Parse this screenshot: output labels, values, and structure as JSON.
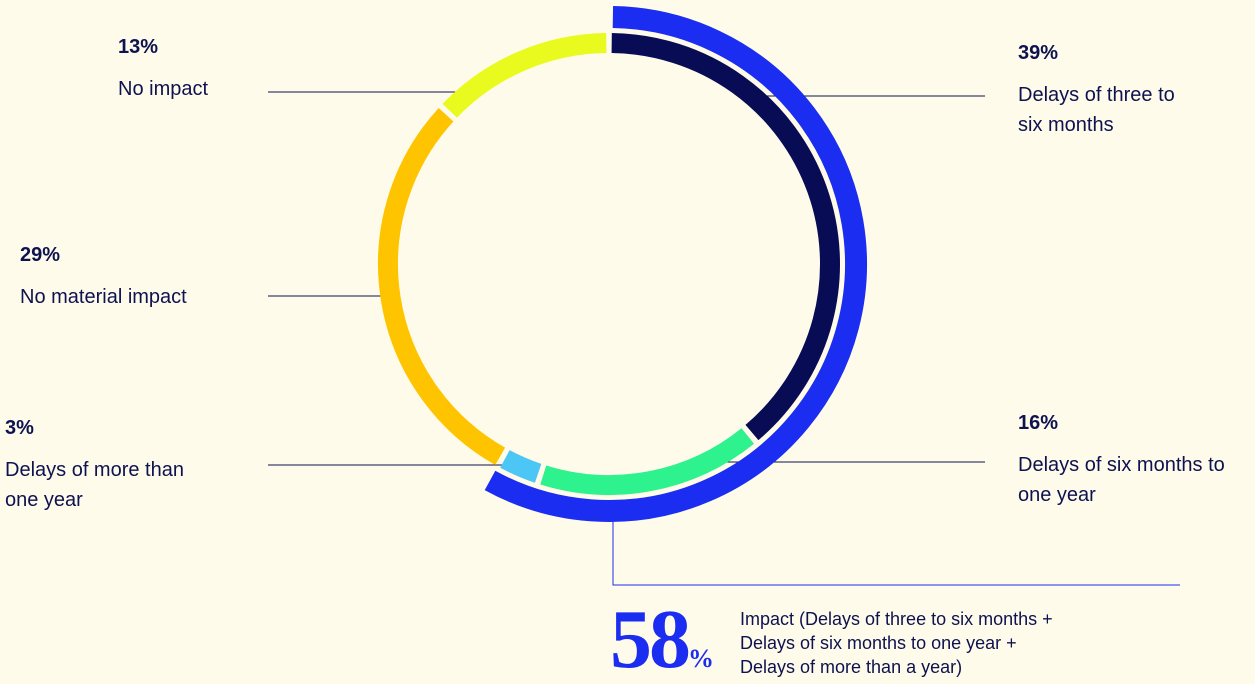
{
  "chart_data": {
    "type": "pie",
    "donut": true,
    "categories": [
      "Delays of three to six months",
      "Delays of six months to one year",
      "Delays of more than one year",
      "No material impact",
      "No impact"
    ],
    "values": [
      39,
      16,
      3,
      29,
      13
    ],
    "value_labels": [
      "39%",
      "16%",
      "3%",
      "29%",
      "13%"
    ],
    "colors": [
      "#080c55",
      "#2ef28e",
      "#4cc6f5",
      "#ffc400",
      "#e9fa1e"
    ],
    "impact": {
      "value": 58,
      "label": "58",
      "unit": "%",
      "color": "#1b2df0",
      "text": [
        "Impact (Delays of three to six months +",
        "Delays of six months to one year +",
        "Delays of more than a year)"
      ]
    }
  }
}
